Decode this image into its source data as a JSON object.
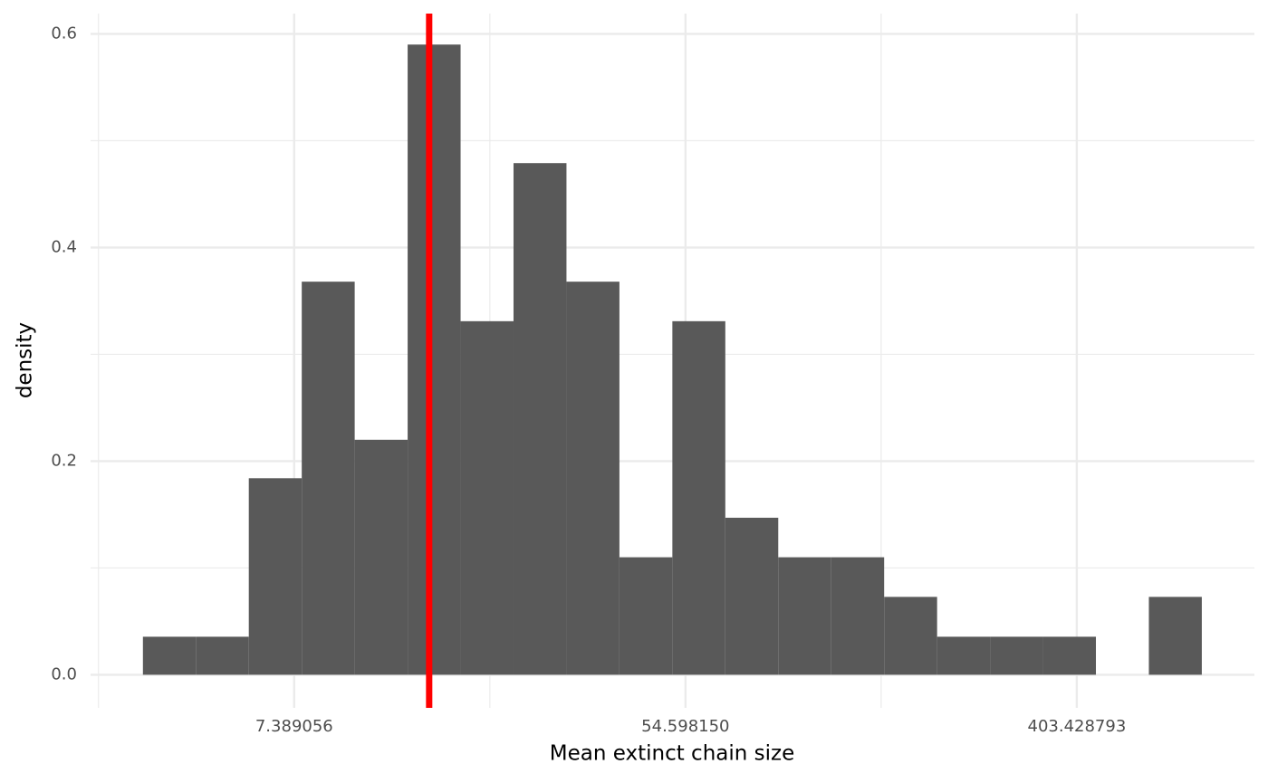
{
  "chart_data": {
    "type": "histogram",
    "xlabel": "Mean extinct chain size",
    "ylabel": "density",
    "xscale": "log",
    "bins": [
      3.4107,
      4.4705,
      5.8597,
      7.6806,
      10.067,
      13.196,
      17.297,
      22.671,
      29.716,
      38.951,
      51.055,
      66.92,
      87.716,
      114.97,
      150.7,
      197.54,
      258.92,
      339.37,
      444.83,
      583.07,
      764.26
    ],
    "values": [
      0.0356,
      0.0356,
      0.184,
      0.368,
      0.22,
      0.59,
      0.331,
      0.479,
      0.368,
      0.11,
      0.331,
      0.147,
      0.11,
      0.11,
      0.0729,
      0.0356,
      0.0356,
      0.0356,
      0,
      0.0729
    ],
    "color": "#595959",
    "vline": 14.73,
    "vline_color": "#ff0000",
    "xlim": [
      2.61,
      1000
    ],
    "xticks": [
      7.389056,
      {
        "value": 54.59815,
        "label": "54.598150"
      },
      403.428793
    ],
    "xminorticks": [
      2.718282,
      20.085537,
      148.413159
    ],
    "ylim": [
      -0.031,
      0.619
    ],
    "yticks": [
      {
        "value": 0,
        "label": "0.0"
      },
      0.2,
      0.4,
      0.6
    ],
    "yminorticks": [
      0.1,
      0.3,
      0.5
    ],
    "grid": true
  }
}
